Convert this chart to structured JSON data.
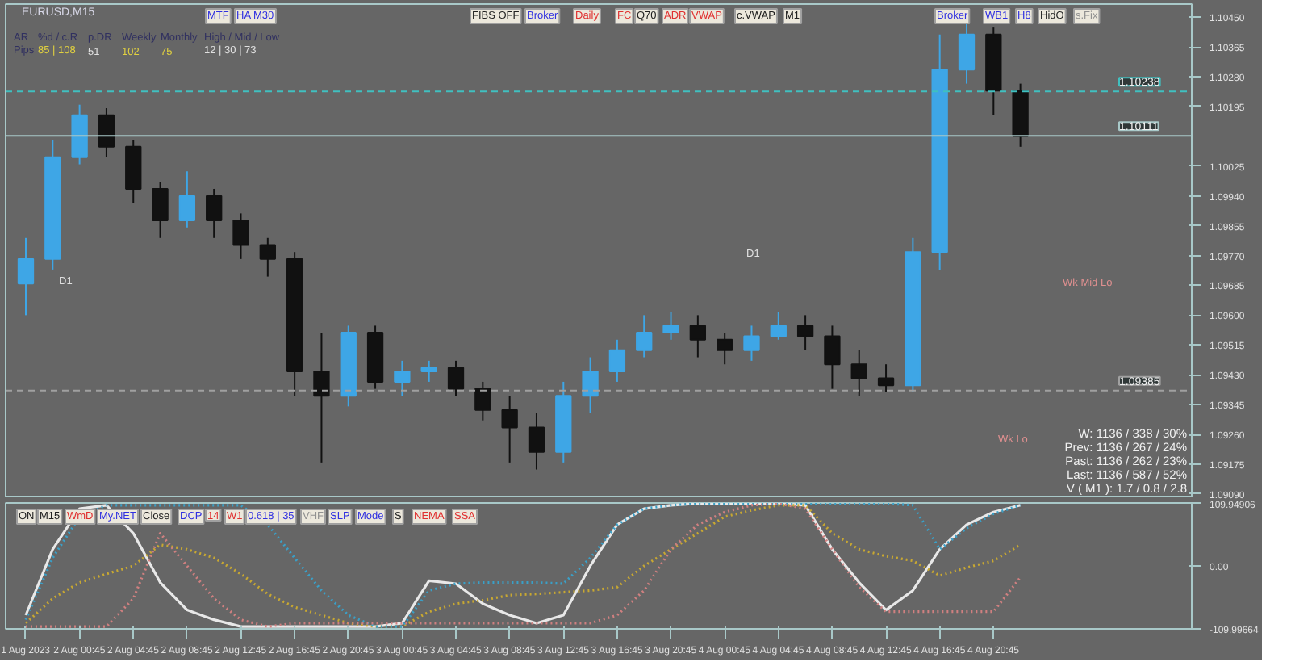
{
  "chart_data": [
    {
      "type": "candlestick",
      "title": "EURUSD,M15",
      "x": [
        "2023-08-01T20:45",
        "2023-08-01T22:45",
        "2023-08-02T00:45",
        "2023-08-02T02:45",
        "2023-08-02T04:45",
        "2023-08-02T06:45",
        "2023-08-02T08:45",
        "2023-08-02T10:45",
        "2023-08-02T12:45",
        "2023-08-02T14:45",
        "2023-08-02T16:45",
        "2023-08-02T18:45",
        "2023-08-02T20:45",
        "2023-08-02T22:45",
        "2023-08-03T00:45",
        "2023-08-03T02:45",
        "2023-08-03T04:45",
        "2023-08-03T06:45",
        "2023-08-03T08:45",
        "2023-08-03T10:45",
        "2023-08-03T12:45",
        "2023-08-03T14:45",
        "2023-08-03T16:45",
        "2023-08-03T18:45",
        "2023-08-03T20:45",
        "2023-08-03T22:45",
        "2023-08-04T00:45",
        "2023-08-04T02:45",
        "2023-08-04T04:45",
        "2023-08-04T06:45",
        "2023-08-04T08:45",
        "2023-08-04T10:45",
        "2023-08-04T12:45",
        "2023-08-04T14:45",
        "2023-08-04T16:45",
        "2023-08-04T18:45",
        "2023-08-04T20:45",
        "2023-08-04T22:45"
      ],
      "ohlc": [
        [
          1.0969,
          1.0982,
          1.096,
          1.0976
        ],
        [
          1.0976,
          1.101,
          1.0973,
          1.1005
        ],
        [
          1.1005,
          1.102,
          1.1003,
          1.1017
        ],
        [
          1.1017,
          1.1019,
          1.1005,
          1.1008
        ],
        [
          1.1008,
          1.101,
          1.0992,
          1.0996
        ],
        [
          1.0996,
          1.0998,
          1.0982,
          1.0987
        ],
        [
          1.0987,
          1.1001,
          1.0985,
          1.0994
        ],
        [
          1.0994,
          1.0996,
          1.0982,
          1.0987
        ],
        [
          1.0987,
          1.0989,
          1.0976,
          1.098
        ],
        [
          1.098,
          1.0982,
          1.0971,
          1.0976
        ],
        [
          1.0976,
          1.0978,
          1.0937,
          1.0944
        ],
        [
          1.0944,
          1.0955,
          1.0918,
          1.0937
        ],
        [
          1.0937,
          1.0957,
          1.0934,
          1.0955
        ],
        [
          1.0955,
          1.0957,
          1.0939,
          1.0941
        ],
        [
          1.0941,
          1.0947,
          1.0937,
          1.0944
        ],
        [
          1.0944,
          1.0947,
          1.0941,
          1.0945
        ],
        [
          1.0945,
          1.0947,
          1.0937,
          1.0939
        ],
        [
          1.0939,
          1.0941,
          1.093,
          1.0933
        ],
        [
          1.0933,
          1.0937,
          1.0918,
          1.0928
        ],
        [
          1.0928,
          1.0932,
          1.0916,
          1.0921
        ],
        [
          1.0921,
          1.0941,
          1.0918,
          1.0937
        ],
        [
          1.0937,
          1.0948,
          1.0932,
          1.0944
        ],
        [
          1.0944,
          1.0953,
          1.0941,
          1.095
        ],
        [
          1.095,
          1.096,
          1.0948,
          1.0955
        ],
        [
          1.0955,
          1.0961,
          1.0953,
          1.0957
        ],
        [
          1.0957,
          1.096,
          1.0948,
          1.0953
        ],
        [
          1.0953,
          1.0955,
          1.0946,
          1.095
        ],
        [
          1.095,
          1.0957,
          1.0947,
          1.0954
        ],
        [
          1.0954,
          1.0961,
          1.0953,
          1.0957
        ],
        [
          1.0957,
          1.096,
          1.095,
          1.0954
        ],
        [
          1.0954,
          1.0957,
          1.0939,
          1.0946
        ],
        [
          1.0946,
          1.095,
          1.0937,
          1.0942
        ],
        [
          1.0942,
          1.0946,
          1.0938,
          1.094
        ],
        [
          1.094,
          1.0982,
          1.0938,
          1.0978
        ],
        [
          1.0978,
          1.104,
          1.0973,
          1.103
        ],
        [
          1.103,
          1.1043,
          1.1026,
          1.104
        ],
        [
          1.104,
          1.1042,
          1.1017,
          1.1024
        ],
        [
          1.1024,
          1.1026,
          1.1008,
          1.1011
        ]
      ],
      "colors": [
        "#3ea6e6",
        "#3ea6e6",
        "#3ea6e6",
        "#111111",
        "#111111",
        "#111111",
        "#3ea6e6",
        "#111111",
        "#111111",
        "#111111",
        "#111111",
        "#111111",
        "#3ea6e6",
        "#111111",
        "#3ea6e6",
        "#3ea6e6",
        "#111111",
        "#111111",
        "#111111",
        "#111111",
        "#3ea6e6",
        "#3ea6e6",
        "#3ea6e6",
        "#3ea6e6",
        "#3ea6e6",
        "#111111",
        "#111111",
        "#3ea6e6",
        "#3ea6e6",
        "#111111",
        "#111111",
        "#111111",
        "#111111",
        "#3ea6e6",
        "#3ea6e6",
        "#3ea6e6",
        "#111111",
        "#111111"
      ],
      "xlim": [
        "2023-08-01T19:15",
        "2023-08-05T11:30"
      ],
      "ylim": [
        1.09083,
        1.10487
      ],
      "yticks": [
        {
          "value": 1.1045,
          "label": "1.10450"
        },
        1.10365,
        {
          "value": 1.1028,
          "label": "1.10280"
        },
        1.10195,
        1.10025,
        {
          "value": 1.0994,
          "label": "1.09940"
        },
        1.09855,
        {
          "value": 1.0977,
          "label": "1.09770"
        },
        1.09685,
        {
          "value": 1.096,
          "label": "1.09600"
        },
        1.09515,
        {
          "value": 1.0943,
          "label": "1.09430"
        },
        1.09345,
        {
          "value": 1.0926,
          "label": "1.09260"
        },
        1.09175,
        {
          "value": 1.0909,
          "label": "1.09090"
        }
      ],
      "tick_labels": "y",
      "grid": false,
      "ref_lines": [
        {
          "axis": "y",
          "value": 1.10111,
          "label": "1.10111",
          "color": "#a8c8c8",
          "line_style": "solid"
        },
        {
          "axis": "y",
          "value": 1.10238,
          "label": "1.10238",
          "color": "#40c0c0",
          "line_style": "dashed"
        },
        {
          "axis": "y",
          "value": 1.09385,
          "label": "1.09385",
          "color": "#a0a0a0",
          "line_style": "dashed"
        }
      ],
      "annotations": [
        "MTF",
        "HA M30",
        "FIBS OFF",
        "Broker",
        "Daily",
        "FC",
        "Q70",
        "ADR",
        "VWAP",
        "c.VWAP",
        "M1",
        "Broker",
        "WB1",
        "H8",
        "HidO",
        "s.Fix",
        "AR",
        "%d / c.R",
        "p.DR",
        "Weekly",
        "Monthly",
        "High / Mid / Low",
        "Pips",
        "85 | 108",
        "51",
        "102",
        "75",
        "12 | 30 | 73",
        "W: 1136 / 338 / 30%",
        "Prev: 1136 / 267 / 24%",
        "Past: 1136 / 262 / 23%",
        "Last: 1136 / 587 / 52%",
        "V ( M1 ): 1.7 / 0.8 / 2.8",
        "Wk Mid Lo",
        "Wk Lo",
        "D1",
        "D1"
      ]
    },
    {
      "type": "line",
      "x": [
        "2023-08-01T20:45",
        "2023-08-01T22:45",
        "2023-08-02T00:45",
        "2023-08-02T02:45",
        "2023-08-02T04:45",
        "2023-08-02T06:45",
        "2023-08-02T08:45",
        "2023-08-02T10:45",
        "2023-08-02T12:45",
        "2023-08-02T14:45",
        "2023-08-02T16:45",
        "2023-08-02T18:45",
        "2023-08-02T20:45",
        "2023-08-02T22:45",
        "2023-08-03T00:45",
        "2023-08-03T02:45",
        "2023-08-03T04:45",
        "2023-08-03T06:45",
        "2023-08-03T08:45",
        "2023-08-03T10:45",
        "2023-08-03T12:45",
        "2023-08-03T14:45",
        "2023-08-03T16:45",
        "2023-08-03T18:45",
        "2023-08-03T20:45",
        "2023-08-03T22:45",
        "2023-08-04T00:45",
        "2023-08-04T02:45",
        "2023-08-04T04:45",
        "2023-08-04T06:45",
        "2023-08-04T08:45",
        "2023-08-04T10:45",
        "2023-08-04T12:45",
        "2023-08-04T14:45",
        "2023-08-04T16:45",
        "2023-08-04T18:45",
        "2023-08-04T20:45",
        "2023-08-04T22:45"
      ],
      "series": [
        {
          "color": "#e8e8e8",
          "line_style": "solid",
          "values": [
            -86,
            29,
            100,
            106,
            57,
            -29,
            -77,
            -94,
            -106,
            -106,
            -106,
            -106,
            -106,
            -106,
            -100,
            -26,
            -31,
            -66,
            -86,
            -100,
            -86,
            0,
            72,
            100,
            106,
            109,
            109,
            109,
            109,
            106,
            29,
            -29,
            -77,
            -43,
            29,
            72,
            94,
            106
          ]
        },
        {
          "color": "#c8a832",
          "line_style": "dotted",
          "values": [
            -100,
            -57,
            -29,
            -14,
            0,
            37,
            29,
            14,
            -14,
            -49,
            -72,
            -86,
            -100,
            -106,
            -106,
            -80,
            -66,
            -60,
            -51,
            -49,
            -46,
            -43,
            -37,
            0,
            29,
            57,
            86,
            97,
            106,
            106,
            57,
            29,
            17,
            9,
            -17,
            -3,
            9,
            37
          ]
        },
        {
          "color": "#3aa0c8",
          "line_style": "dotted",
          "values": [
            -94,
            14,
            86,
            106,
            106,
            106,
            106,
            106,
            106,
            72,
            14,
            -43,
            -86,
            -106,
            -106,
            -43,
            -31,
            -29,
            -29,
            -29,
            -31,
            14,
            72,
            100,
            106,
            109,
            109,
            109,
            109,
            109,
            109,
            109,
            109,
            106,
            29,
            66,
            91,
            106
          ]
        },
        {
          "color": "#d08080",
          "line_style": "dotted",
          "values": [
            -106,
            -106,
            -106,
            -106,
            -57,
            57,
            0,
            -57,
            -94,
            -106,
            -100,
            -100,
            -100,
            -100,
            -100,
            -100,
            -100,
            -100,
            -100,
            -100,
            -100,
            -100,
            -86,
            -43,
            29,
            72,
            94,
            106,
            109,
            100,
            29,
            -37,
            -80,
            -80,
            -80,
            -80,
            -80,
            -20
          ]
        }
      ],
      "xlim": [
        "2023-08-01T19:15",
        "2023-08-05T11:30"
      ],
      "ylim": [
        -109.99664,
        109.94906
      ],
      "yticks": [
        109.94906,
        {
          "value": 0,
          "label": "0.00"
        },
        -109.99664
      ],
      "xticks": [
        {
          "value": "2023-08-01T20:45",
          "label": "1 Aug 2023"
        },
        {
          "value": "2023-08-02T00:45",
          "label": "2 Aug 00:45"
        },
        {
          "value": "2023-08-02T04:45",
          "label": "2 Aug 04:45"
        },
        {
          "value": "2023-08-02T08:45",
          "label": "2 Aug 08:45"
        },
        {
          "value": "2023-08-02T12:45",
          "label": "2 Aug 12:45"
        },
        {
          "value": "2023-08-02T16:45",
          "label": "2 Aug 16:45"
        },
        {
          "value": "2023-08-02T20:45",
          "label": "2 Aug 20:45"
        },
        {
          "value": "2023-08-03T00:45",
          "label": "3 Aug 00:45"
        },
        {
          "value": "2023-08-03T04:45",
          "label": "3 Aug 04:45"
        },
        {
          "value": "2023-08-03T08:45",
          "label": "3 Aug 08:45"
        },
        {
          "value": "2023-08-03T12:45",
          "label": "3 Aug 12:45"
        },
        {
          "value": "2023-08-03T16:45",
          "label": "3 Aug 16:45"
        },
        {
          "value": "2023-08-03T20:45",
          "label": "3 Aug 20:45"
        },
        {
          "value": "2023-08-04T00:45",
          "label": "4 Aug 00:45"
        },
        {
          "value": "2023-08-04T04:45",
          "label": "4 Aug 04:45"
        },
        {
          "value": "2023-08-04T08:45",
          "label": "4 Aug 08:45"
        },
        {
          "value": "2023-08-04T12:45",
          "label": "4 Aug 12:45"
        },
        {
          "value": "2023-08-04T16:45",
          "label": "4 Aug 16:45"
        },
        {
          "value": "2023-08-04T20:45",
          "label": "4 Aug 20:45"
        }
      ],
      "grid": false,
      "annotations": [
        "ON",
        "M15",
        "WmD",
        "My.NET",
        "Close",
        "DCP",
        "14",
        "W1",
        "0.618 | 35",
        "VHF",
        "SLP",
        "Mode",
        "S",
        "NEMA",
        "SSA"
      ]
    }
  ]
}
